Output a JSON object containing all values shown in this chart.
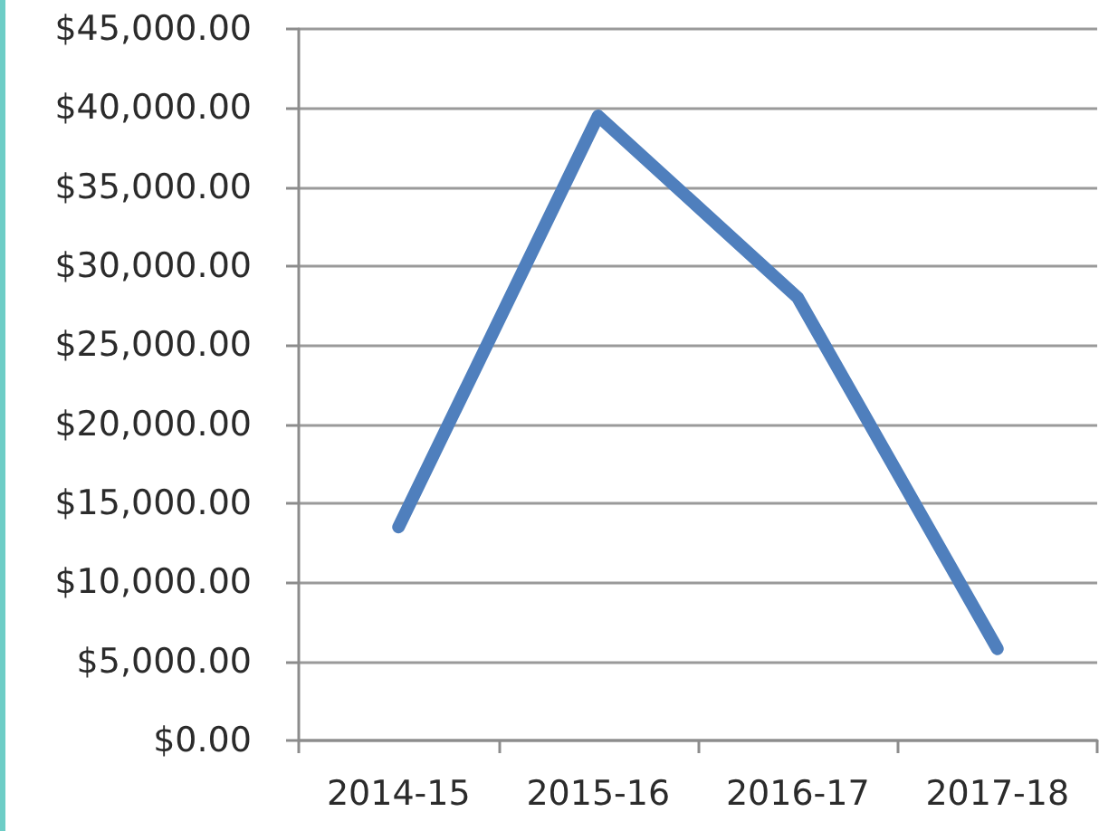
{
  "chart_data": {
    "type": "line",
    "categories": [
      "2014-15",
      "2015-16",
      "2016-17",
      "2017-18"
    ],
    "series": [
      {
        "color": "#4f7fbd",
        "values": [
          13500,
          39500,
          28000,
          5800
        ]
      }
    ],
    "ylim": [
      0,
      45000
    ],
    "yticks": [
      {
        "value": 0,
        "label": "$0.00"
      },
      {
        "value": 5000,
        "label": "$5,000.00"
      },
      {
        "value": 10000,
        "label": "$10,000.00"
      },
      {
        "value": 15000,
        "label": "$15,000.00"
      },
      {
        "value": 20000,
        "label": "$20,000.00"
      },
      {
        "value": 25000,
        "label": "$25,000.00"
      },
      {
        "value": 30000,
        "label": "$30,000.00"
      },
      {
        "value": 35000,
        "label": "$35,000.00"
      },
      {
        "value": 40000,
        "label": "$40,000.00"
      },
      {
        "value": 45000,
        "label": "$45,000.00"
      }
    ],
    "grid": "y"
  }
}
